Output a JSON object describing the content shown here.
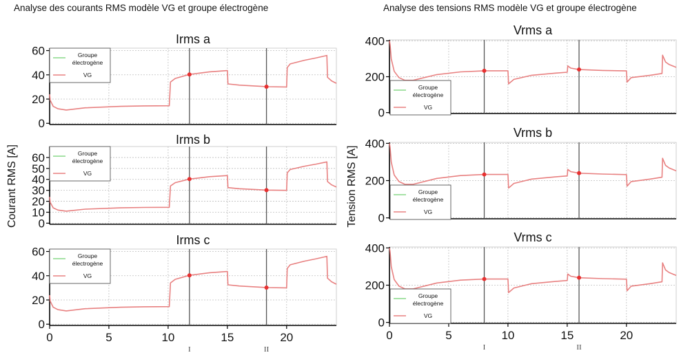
{
  "left_title": "Analyse des courants RMS modèle VG et groupe électrogène",
  "right_title": "Analyse des tensions RMS modèle VG et groupe électrogène",
  "left_ylabel": "Courant RMS [A]",
  "right_ylabel": "Tension RMS [A]",
  "colors": {
    "vg": "#e88080",
    "groupe": "#88d888",
    "marker_line": "#555555",
    "point": "#e83030",
    "grid": "#bdbdbd"
  },
  "chart_data": [
    {
      "type": "line",
      "title": "Irms a",
      "xlim": [
        0,
        24.2
      ],
      "ylim": [
        -1,
        62
      ],
      "x_ticks": [
        0,
        5,
        10,
        15,
        20
      ],
      "y_ticks": [
        0,
        20,
        40,
        60
      ],
      "markers": [
        {
          "x": 11.8,
          "label": ""
        },
        {
          "x": 18.3,
          "label": ""
        }
      ],
      "points": [
        {
          "x": 11.8,
          "y": 40.3
        },
        {
          "x": 18.3,
          "y": 30.2
        }
      ],
      "legend": [
        "Groupe électrogène",
        "VG"
      ],
      "legend_position": "upper-left",
      "series": [
        {
          "name": "VG",
          "x": [
            0,
            0.05,
            0.3,
            0.7,
            1.4,
            3,
            6,
            8,
            10.1,
            10.2,
            10.6,
            11.8,
            13.5,
            15,
            15.05,
            16,
            18.3,
            20,
            20.05,
            20.3,
            21.5,
            22.5,
            23.4,
            23.45,
            23.8,
            24.2
          ],
          "y": [
            24,
            19,
            14,
            12,
            11,
            12.8,
            14,
            14.4,
            14.5,
            34,
            37,
            40.3,
            42.5,
            43.5,
            32.5,
            31.5,
            30.2,
            30,
            46,
            49,
            52,
            54,
            56,
            38,
            35,
            33
          ]
        }
      ]
    },
    {
      "type": "line",
      "title": "Irms b",
      "xlim": [
        0,
        24.2
      ],
      "ylim": [
        -1,
        70
      ],
      "x_ticks": [
        0,
        5,
        10,
        15,
        20
      ],
      "y_ticks": [
        0,
        10,
        20,
        30,
        40,
        50,
        60
      ],
      "markers": [
        {
          "x": 11.8,
          "label": ""
        },
        {
          "x": 18.3,
          "label": ""
        }
      ],
      "points": [
        {
          "x": 11.8,
          "y": 40.3
        },
        {
          "x": 18.3,
          "y": 30.2
        }
      ],
      "legend": [
        "Groupe électrogène",
        "VG"
      ],
      "legend_position": "upper-left",
      "series": [
        {
          "name": "VG",
          "x": [
            0,
            0.05,
            0.3,
            0.7,
            1.4,
            3,
            6,
            8,
            10.1,
            10.2,
            10.6,
            11.8,
            13.5,
            15,
            15.05,
            16,
            18.3,
            20,
            20.05,
            20.3,
            21.5,
            22.5,
            23.4,
            23.45,
            23.8,
            24.2
          ],
          "y": [
            24,
            19,
            14,
            12,
            11,
            12.8,
            14,
            14.4,
            14.5,
            34,
            37,
            40.3,
            42.5,
            43.5,
            32.5,
            31.5,
            30.2,
            30,
            46,
            49,
            52,
            54,
            56,
            38,
            35,
            33
          ]
        }
      ]
    },
    {
      "type": "line",
      "title": "Irms c",
      "xlim": [
        0,
        24.2
      ],
      "ylim": [
        -1,
        62
      ],
      "x_ticks": [
        0,
        5,
        10,
        15,
        20
      ],
      "y_ticks": [
        0,
        20,
        40,
        60
      ],
      "markers": [
        {
          "x": 11.8,
          "label": "I"
        },
        {
          "x": 18.3,
          "label": "II"
        }
      ],
      "points": [
        {
          "x": 11.8,
          "y": 40.3
        },
        {
          "x": 18.3,
          "y": 30.2
        }
      ],
      "legend": [
        "Groupe électrogène",
        "VG"
      ],
      "legend_position": "upper-left",
      "series": [
        {
          "name": "VG",
          "x": [
            0,
            0.05,
            0.3,
            0.7,
            1.4,
            3,
            6,
            8,
            10.1,
            10.2,
            10.6,
            11.8,
            13.5,
            15,
            15.05,
            16,
            18.3,
            20,
            20.05,
            20.3,
            21.5,
            22.5,
            23.4,
            23.45,
            23.8,
            24.2
          ],
          "y": [
            24,
            19,
            14,
            12,
            11,
            12.8,
            14,
            14.4,
            14.5,
            34,
            37,
            40.3,
            42.5,
            43.5,
            32.5,
            31.5,
            30.2,
            30,
            46,
            49,
            52,
            54,
            56,
            38,
            35,
            33
          ]
        }
      ]
    },
    {
      "type": "line",
      "title": "Vrms a",
      "xlim": [
        0,
        24.2
      ],
      "ylim": [
        -5,
        405
      ],
      "x_ticks": [
        0,
        5,
        10,
        15,
        20
      ],
      "y_ticks": [
        0,
        200,
        400
      ],
      "markers": [
        {
          "x": 8,
          "label": ""
        },
        {
          "x": 16,
          "label": ""
        }
      ],
      "points": [
        {
          "x": 8,
          "y": 233
        },
        {
          "x": 16,
          "y": 240
        }
      ],
      "legend": [
        "Groupe électrogène",
        "VG"
      ],
      "legend_position": "lower-left",
      "series": [
        {
          "name": "VG",
          "x": [
            0,
            0.05,
            0.15,
            0.4,
            0.8,
            1.3,
            2,
            4,
            6,
            8,
            10,
            10.05,
            10.5,
            12,
            14,
            15,
            15.05,
            15.3,
            16,
            18,
            20,
            20.05,
            20.4,
            22,
            23,
            23.05,
            23.3,
            23.6,
            24.2
          ],
          "y": [
            400,
            380,
            300,
            230,
            195,
            180,
            180,
            212,
            227,
            233,
            233,
            160,
            185,
            208,
            220,
            225,
            260,
            248,
            240,
            235,
            232,
            170,
            195,
            208,
            218,
            320,
            282,
            268,
            252
          ]
        }
      ]
    },
    {
      "type": "line",
      "title": "Vrms b",
      "xlim": [
        0,
        24.2
      ],
      "ylim": [
        -5,
        405
      ],
      "x_ticks": [
        0,
        5,
        10,
        15,
        20
      ],
      "y_ticks": [
        0,
        200,
        400
      ],
      "markers": [
        {
          "x": 8,
          "label": ""
        },
        {
          "x": 16,
          "label": ""
        }
      ],
      "points": [
        {
          "x": 8,
          "y": 233
        },
        {
          "x": 16,
          "y": 240
        }
      ],
      "legend": [
        "Groupe électrogène",
        "VG"
      ],
      "legend_position": "lower-left",
      "series": [
        {
          "name": "VG",
          "x": [
            0,
            0.05,
            0.15,
            0.4,
            0.8,
            1.3,
            2,
            4,
            6,
            8,
            10,
            10.05,
            10.5,
            12,
            14,
            15,
            15.05,
            15.3,
            16,
            18,
            20,
            20.05,
            20.4,
            22,
            23,
            23.05,
            23.3,
            23.6,
            24.2
          ],
          "y": [
            400,
            380,
            300,
            230,
            195,
            180,
            180,
            212,
            227,
            233,
            233,
            160,
            185,
            208,
            220,
            225,
            260,
            248,
            240,
            235,
            232,
            170,
            195,
            208,
            218,
            320,
            282,
            268,
            252
          ]
        }
      ]
    },
    {
      "type": "line",
      "title": "Vrms c",
      "xlim": [
        0,
        24.2
      ],
      "ylim": [
        -5,
        405
      ],
      "x_ticks": [
        0,
        5,
        10,
        15,
        20
      ],
      "y_ticks": [
        0,
        200,
        400
      ],
      "markers": [
        {
          "x": 8,
          "label": "I"
        },
        {
          "x": 16,
          "label": "II"
        }
      ],
      "points": [
        {
          "x": 8,
          "y": 233
        },
        {
          "x": 16,
          "y": 240
        }
      ],
      "legend": [
        "Groupe électrogène",
        "VG"
      ],
      "legend_position": "lower-left",
      "series": [
        {
          "name": "VG",
          "x": [
            0,
            0.05,
            0.15,
            0.4,
            0.8,
            1.3,
            2,
            4,
            6,
            8,
            10,
            10.05,
            10.5,
            12,
            14,
            15,
            15.05,
            15.3,
            16,
            18,
            20,
            20.05,
            20.4,
            22,
            23,
            23.05,
            23.3,
            23.6,
            24.2
          ],
          "y": [
            400,
            380,
            300,
            230,
            195,
            180,
            180,
            212,
            227,
            233,
            233,
            160,
            185,
            208,
            220,
            225,
            260,
            248,
            240,
            235,
            232,
            170,
            195,
            208,
            218,
            320,
            282,
            268,
            252
          ]
        }
      ]
    }
  ]
}
